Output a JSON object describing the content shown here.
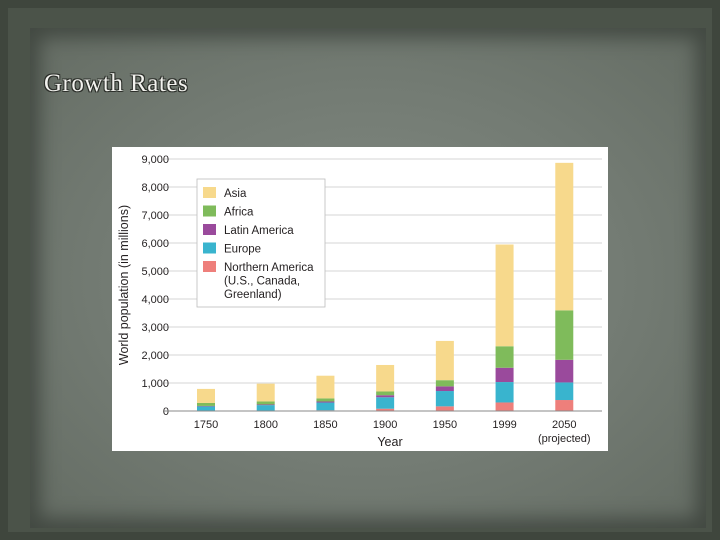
{
  "slide": {
    "title": "Growth Rates"
  },
  "chart_data": {
    "type": "bar",
    "stacked": true,
    "title": "",
    "xlabel": "Year",
    "ylabel": "World population (in millions)",
    "ylim": [
      0,
      9000
    ],
    "y_ticks": [
      "0",
      "1,000",
      "2,000",
      "3,000",
      "4,000",
      "5,000",
      "6,000",
      "7,000",
      "8,000",
      "9,000"
    ],
    "categories": [
      "1750",
      "1800",
      "1850",
      "1900",
      "1950",
      "1999",
      "2050"
    ],
    "category_notes": [
      "",
      "",
      "",
      "",
      "",
      "",
      "(projected)"
    ],
    "grid": true,
    "legend": {
      "position": "top-left"
    },
    "series": [
      {
        "name": "Northern America",
        "legend_lines": [
          "Northern America",
          "(U.S., Canada,",
          "Greenland)"
        ],
        "color": "#ee7f7b",
        "values": [
          2,
          7,
          26,
          82,
          166,
          305,
          392
        ]
      },
      {
        "name": "Europe",
        "legend_lines": [
          "Europe"
        ],
        "color": "#39b4ce",
        "values": [
          163,
          203,
          276,
          408,
          547,
          729,
          628
        ]
      },
      {
        "name": "Latin America",
        "legend_lines": [
          "Latin America"
        ],
        "color": "#9a4a9c",
        "values": [
          16,
          24,
          38,
          74,
          167,
          511,
          809
        ]
      },
      {
        "name": "Africa",
        "legend_lines": [
          "Africa"
        ],
        "color": "#7fbb5b",
        "values": [
          106,
          107,
          111,
          133,
          221,
          767,
          1766
        ]
      },
      {
        "name": "Asia",
        "legend_lines": [
          "Asia"
        ],
        "color": "#f7d98c",
        "values": [
          502,
          635,
          809,
          947,
          1402,
          3634,
          5268
        ]
      }
    ]
  }
}
